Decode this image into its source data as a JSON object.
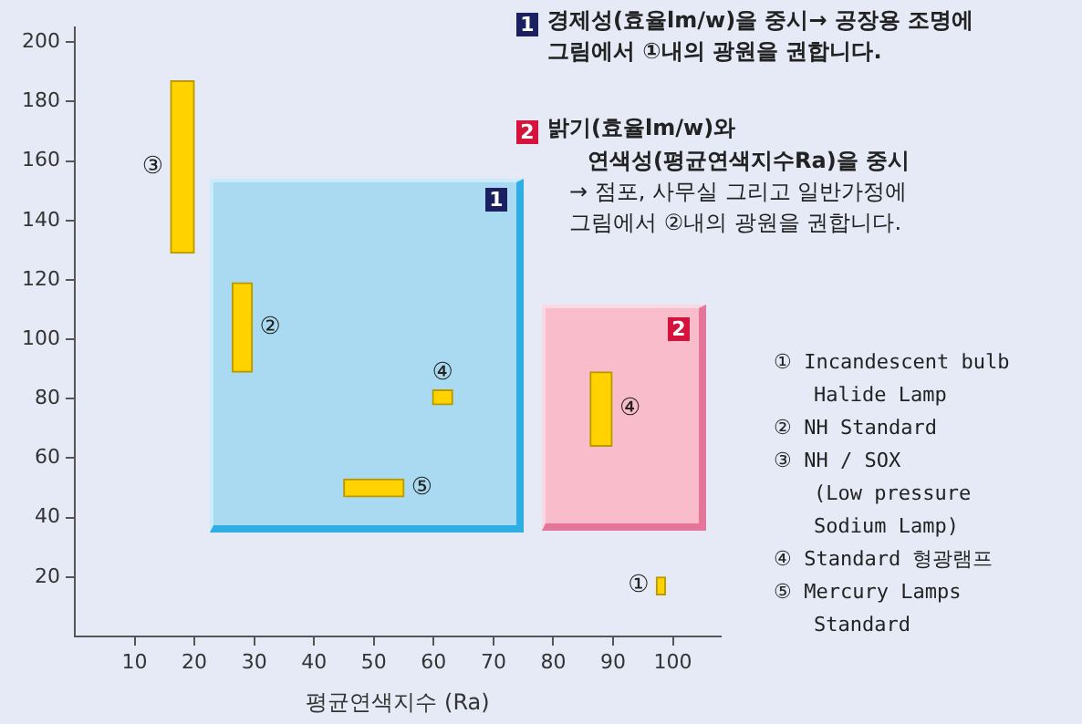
{
  "chart_data": {
    "type": "bar",
    "xlabel": "평균연색지수 (Ra)",
    "xlim": [
      0,
      108
    ],
    "ylim": [
      0,
      205
    ],
    "xticks": [
      10,
      20,
      30,
      40,
      50,
      60,
      70,
      80,
      90,
      100
    ],
    "yticks": [
      20,
      40,
      60,
      80,
      100,
      120,
      140,
      160,
      180,
      200
    ],
    "series": [
      {
        "name": "③",
        "color": "#ffd200",
        "x": [
          18
        ],
        "base": [
          129
        ],
        "values": [
          58
        ]
      },
      {
        "name": "②",
        "color": "#ffd200",
        "x": [
          28
        ],
        "base": [
          89
        ],
        "values": [
          30
        ]
      },
      {
        "name": "④",
        "color": "#ffd200",
        "x": [
          61.5
        ],
        "base": [
          78
        ],
        "values": [
          5
        ]
      },
      {
        "name": "⑤",
        "color": "#ffd200",
        "x": [
          50
        ],
        "base": [
          47
        ],
        "values": [
          6
        ]
      },
      {
        "name": "④",
        "color": "#ffd200",
        "x": [
          88
        ],
        "base": [
          64
        ],
        "values": [
          25
        ]
      },
      {
        "name": "①",
        "color": "#ffd200",
        "x": [
          98
        ],
        "base": [
          14
        ],
        "values": [
          6
        ]
      }
    ],
    "annotations": [
      "1",
      "경제성(효율lm/w)을 중시→ 공장용 조명에\n그림에서 ①내의 광원을 권합니다.",
      "2",
      "밝기(효율lm/w)와",
      "연색성(평균연색지수Ra)을 중시",
      "→ 점포, 사무실 그리고 일반가정에\n그림에서 ②내의 광원을 권합니다.",
      "1",
      "2",
      "① Incandescent bulb\nHalide Lamp",
      "② NH Standard",
      "③ NH / SOX\n(Low pressure\nSodium Lamp)",
      "④ Standard 형광램프",
      "⑤ Mercury Lamps\nStandard"
    ]
  }
}
